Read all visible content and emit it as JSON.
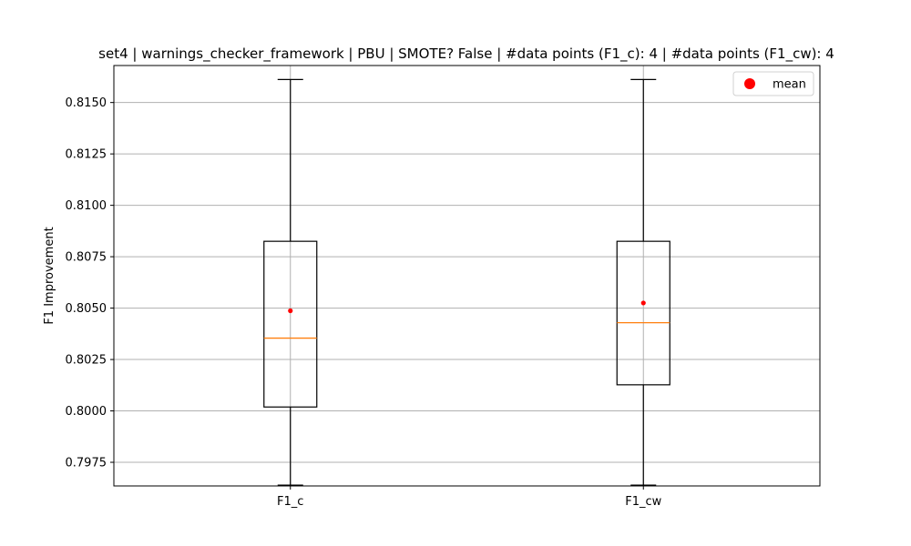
{
  "chart_data": {
    "type": "box",
    "title": "set4 | warnings_checker_framework | PBU | SMOTE? False | #data points (F1_c): 4 | #data points (F1_cw): 4",
    "xlabel": "",
    "ylabel": "F1 Improvement",
    "ylim": [
      0.79635,
      0.8168
    ],
    "yticks": [
      0.7975,
      0.8,
      0.8025,
      0.805,
      0.8075,
      0.81,
      0.8125,
      0.815
    ],
    "ytick_labels": [
      "0.7975",
      "0.8000",
      "0.8025",
      "0.8050",
      "0.8075",
      "0.8100",
      "0.8125",
      "0.8150"
    ],
    "grid": true,
    "legend": {
      "placement": "top-right",
      "entries": [
        {
          "label": "mean",
          "color": "#ff0000",
          "marker": "circle"
        }
      ]
    },
    "categories": [
      "F1_c",
      "F1_cw"
    ],
    "boxes": [
      {
        "name": "F1_c",
        "whisker_low": 0.79639,
        "q1": 0.80019,
        "median": 0.80354,
        "q3": 0.80825,
        "whisker_high": 0.81612,
        "mean": 0.80487
      },
      {
        "name": "F1_cw",
        "whisker_low": 0.79639,
        "q1": 0.80127,
        "median": 0.80429,
        "q3": 0.80825,
        "whisker_high": 0.81612,
        "mean": 0.80525
      }
    ],
    "colors": {
      "box": "#000000",
      "median": "#ff7f0e",
      "mean": "#ff0000",
      "grid": "#b0b0b0"
    }
  }
}
